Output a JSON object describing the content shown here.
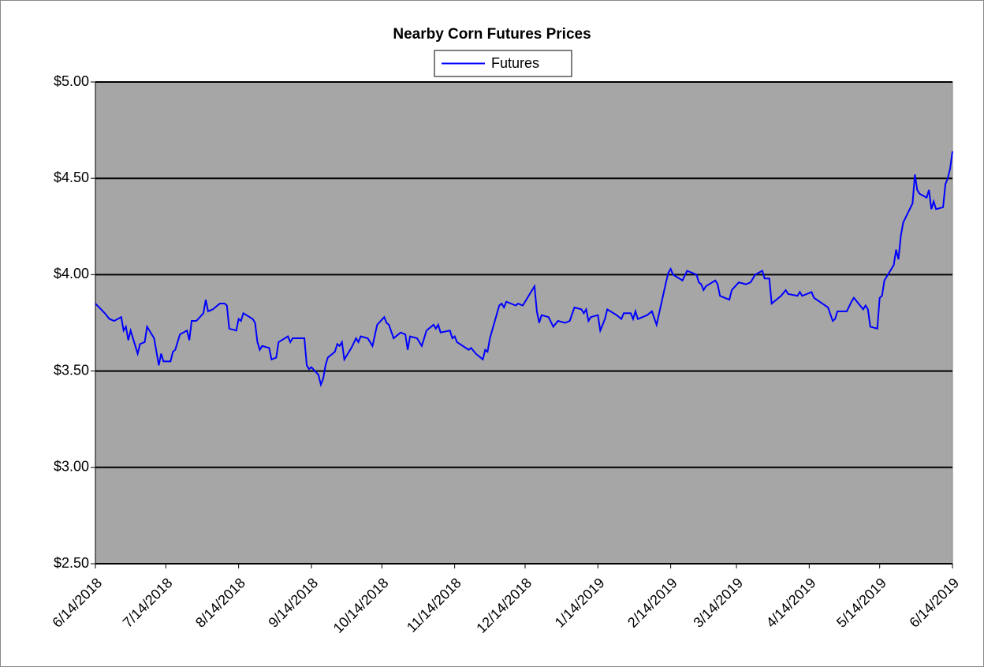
{
  "chart_data": {
    "type": "line",
    "title": "Nearby Corn Futures Prices",
    "x": [
      "6/14/2018",
      "6/18/2018",
      "6/20/2018",
      "6/22/2018",
      "6/25/2018",
      "6/26/2018",
      "6/27/2018",
      "6/28/2018",
      "6/29/2018",
      "7/2/2018",
      "7/3/2018",
      "7/5/2018",
      "7/6/2018",
      "7/9/2018",
      "7/11/2018",
      "7/12/2018",
      "7/13/2018",
      "7/16/2018",
      "7/17/2018",
      "7/18/2018",
      "7/20/2018",
      "7/23/2018",
      "7/24/2018",
      "7/25/2018",
      "7/27/2018",
      "7/30/2018",
      "7/31/2018",
      "8/1/2018",
      "8/3/2018",
      "8/6/2018",
      "8/8/2018",
      "8/9/2018",
      "8/10/2018",
      "8/13/2018",
      "8/14/2018",
      "8/15/2018",
      "8/16/2018",
      "8/20/2018",
      "8/21/2018",
      "8/22/2018",
      "8/23/2018",
      "8/24/2018",
      "8/27/2018",
      "8/28/2018",
      "8/30/2018",
      "8/31/2018",
      "9/4/2018",
      "9/5/2018",
      "9/6/2018",
      "9/11/2018",
      "9/12/2018",
      "9/13/2018",
      "9/14/2018",
      "9/17/2018",
      "9/18/2018",
      "9/19/2018",
      "9/20/2018",
      "9/21/2018",
      "9/24/2018",
      "9/25/2018",
      "9/26/2018",
      "9/27/2018",
      "9/28/2018",
      "10/1/2018",
      "10/3/2018",
      "10/4/2018",
      "10/5/2018",
      "10/8/2018",
      "10/10/2018",
      "10/12/2018",
      "10/15/2018",
      "10/16/2018",
      "10/17/2018",
      "10/19/2018",
      "10/22/2018",
      "10/24/2018",
      "10/25/2018",
      "10/26/2018",
      "10/29/2018",
      "10/31/2018",
      "11/2/2018",
      "11/5/2018",
      "11/6/2018",
      "11/7/2018",
      "11/8/2018",
      "11/12/2018",
      "11/13/2018",
      "11/14/2018",
      "11/15/2018",
      "11/20/2018",
      "11/21/2018",
      "11/23/2018",
      "11/26/2018",
      "11/27/2018",
      "11/28/2018",
      "11/29/2018",
      "12/3/2018",
      "12/4/2018",
      "12/5/2018",
      "12/6/2018",
      "12/10/2018",
      "12/11/2018",
      "12/13/2018",
      "12/18/2018",
      "12/19/2018",
      "12/20/2018",
      "12/21/2018",
      "12/24/2018",
      "12/26/2018",
      "12/28/2018",
      "12/31/2018",
      "1/2/2019",
      "1/4/2019",
      "1/7/2019",
      "1/8/2019",
      "1/9/2019",
      "1/10/2019",
      "1/11/2019",
      "1/14/2019",
      "1/15/2019",
      "1/17/2019",
      "1/18/2019",
      "1/22/2019",
      "1/24/2019",
      "1/25/2019",
      "1/28/2019",
      "1/29/2019",
      "1/30/2019",
      "1/31/2019",
      "2/4/2019",
      "2/6/2019",
      "2/8/2019",
      "2/12/2019",
      "2/13/2019",
      "2/14/2019",
      "2/15/2019",
      "2/19/2019",
      "2/21/2019",
      "2/25/2019",
      "2/26/2019",
      "2/27/2019",
      "2/28/2019",
      "3/1/2019",
      "3/5/2019",
      "3/6/2019",
      "3/7/2019",
      "3/11/2019",
      "3/12/2019",
      "3/15/2019",
      "3/18/2019",
      "3/20/2019",
      "3/22/2019",
      "3/25/2019",
      "3/26/2019",
      "3/28/2019",
      "3/29/2019",
      "4/2/2019",
      "4/4/2019",
      "4/5/2019",
      "4/9/2019",
      "4/10/2019",
      "4/11/2019",
      "4/15/2019",
      "4/16/2019",
      "4/22/2019",
      "4/24/2019",
      "4/25/2019",
      "4/26/2019",
      "4/30/2019",
      "5/2/2019",
      "5/3/2019",
      "5/7/2019",
      "5/8/2019",
      "5/9/2019",
      "5/10/2019",
      "5/13/2019",
      "5/14/2019",
      "5/15/2019",
      "5/16/2019",
      "5/17/2019",
      "5/20/2019",
      "5/21/2019",
      "5/22/2019",
      "5/23/2019",
      "5/24/2019",
      "5/28/2019",
      "5/29/2019",
      "5/30/2019",
      "5/31/2019",
      "6/3/2019",
      "6/4/2019",
      "6/5/2019",
      "6/6/2019",
      "6/7/2019",
      "6/10/2019",
      "6/11/2019",
      "6/12/2019",
      "6/13/2019",
      "6/14/2019"
    ],
    "series": [
      {
        "name": "Futures",
        "color": "#0000ff",
        "values": [
          3.85,
          3.8,
          3.77,
          3.76,
          3.78,
          3.71,
          3.73,
          3.66,
          3.71,
          3.59,
          3.64,
          3.65,
          3.73,
          3.67,
          3.53,
          3.59,
          3.55,
          3.55,
          3.6,
          3.61,
          3.69,
          3.71,
          3.66,
          3.76,
          3.76,
          3.8,
          3.87,
          3.81,
          3.82,
          3.85,
          3.85,
          3.84,
          3.72,
          3.71,
          3.77,
          3.76,
          3.8,
          3.77,
          3.75,
          3.65,
          3.61,
          3.63,
          3.62,
          3.56,
          3.57,
          3.65,
          3.68,
          3.65,
          3.67,
          3.67,
          3.53,
          3.51,
          3.52,
          3.48,
          3.43,
          3.46,
          3.53,
          3.57,
          3.6,
          3.64,
          3.63,
          3.65,
          3.56,
          3.62,
          3.67,
          3.65,
          3.68,
          3.67,
          3.63,
          3.74,
          3.78,
          3.75,
          3.74,
          3.67,
          3.7,
          3.69,
          3.61,
          3.68,
          3.67,
          3.63,
          3.71,
          3.74,
          3.72,
          3.74,
          3.7,
          3.71,
          3.67,
          3.68,
          3.65,
          3.61,
          3.62,
          3.59,
          3.56,
          3.61,
          3.6,
          3.67,
          3.84,
          3.85,
          3.83,
          3.86,
          3.84,
          3.85,
          3.84,
          3.94,
          3.81,
          3.75,
          3.79,
          3.78,
          3.73,
          3.76,
          3.75,
          3.76,
          3.83,
          3.82,
          3.8,
          3.82,
          3.76,
          3.78,
          3.79,
          3.71,
          3.77,
          3.82,
          3.79,
          3.77,
          3.8,
          3.8,
          3.77,
          3.81,
          3.77,
          3.79,
          3.81,
          3.74,
          3.96,
          4.01,
          4.03,
          4.0,
          3.97,
          4.02,
          4.0,
          3.96,
          3.95,
          3.92,
          3.94,
          3.97,
          3.95,
          3.89,
          3.87,
          3.92,
          3.96,
          3.95,
          3.96,
          4.0,
          4.02,
          3.98,
          3.98,
          3.85,
          3.89,
          3.92,
          3.9,
          3.89,
          3.91,
          3.89,
          3.91,
          3.88,
          3.83,
          3.76,
          3.77,
          3.81,
          3.81,
          3.86,
          3.88,
          3.82,
          3.84,
          3.82,
          3.73,
          3.72,
          3.88,
          3.89,
          3.97,
          3.99,
          4.05,
          4.13,
          4.08,
          4.2,
          4.27,
          4.37,
          4.52,
          4.44,
          4.42,
          4.4,
          4.44,
          4.34,
          4.38,
          4.34,
          4.35,
          4.47,
          4.5,
          4.55,
          4.64
        ]
      }
    ],
    "xlim": [
      "6/14/2018",
      "6/14/2019"
    ],
    "xticks": [
      "6/14/2018",
      "7/14/2018",
      "8/14/2018",
      "9/14/2018",
      "10/14/2018",
      "11/14/2018",
      "12/14/2018",
      "1/14/2019",
      "2/14/2019",
      "3/14/2019",
      "4/14/2019",
      "5/14/2019",
      "6/14/2019"
    ],
    "ylim": [
      2.5,
      5
    ],
    "yticks": [
      {
        "value": 2.5,
        "label": "$2.50"
      },
      {
        "value": 3,
        "label": "$3.00"
      },
      {
        "value": 3.5,
        "label": "$3.50"
      },
      {
        "value": 4,
        "label": "$4.00"
      },
      {
        "value": 4.5,
        "label": "$4.50"
      },
      {
        "value": 5,
        "label": "$5.00"
      }
    ],
    "grid": true,
    "legend": "top",
    "plot_background": "#a6a6a6"
  }
}
